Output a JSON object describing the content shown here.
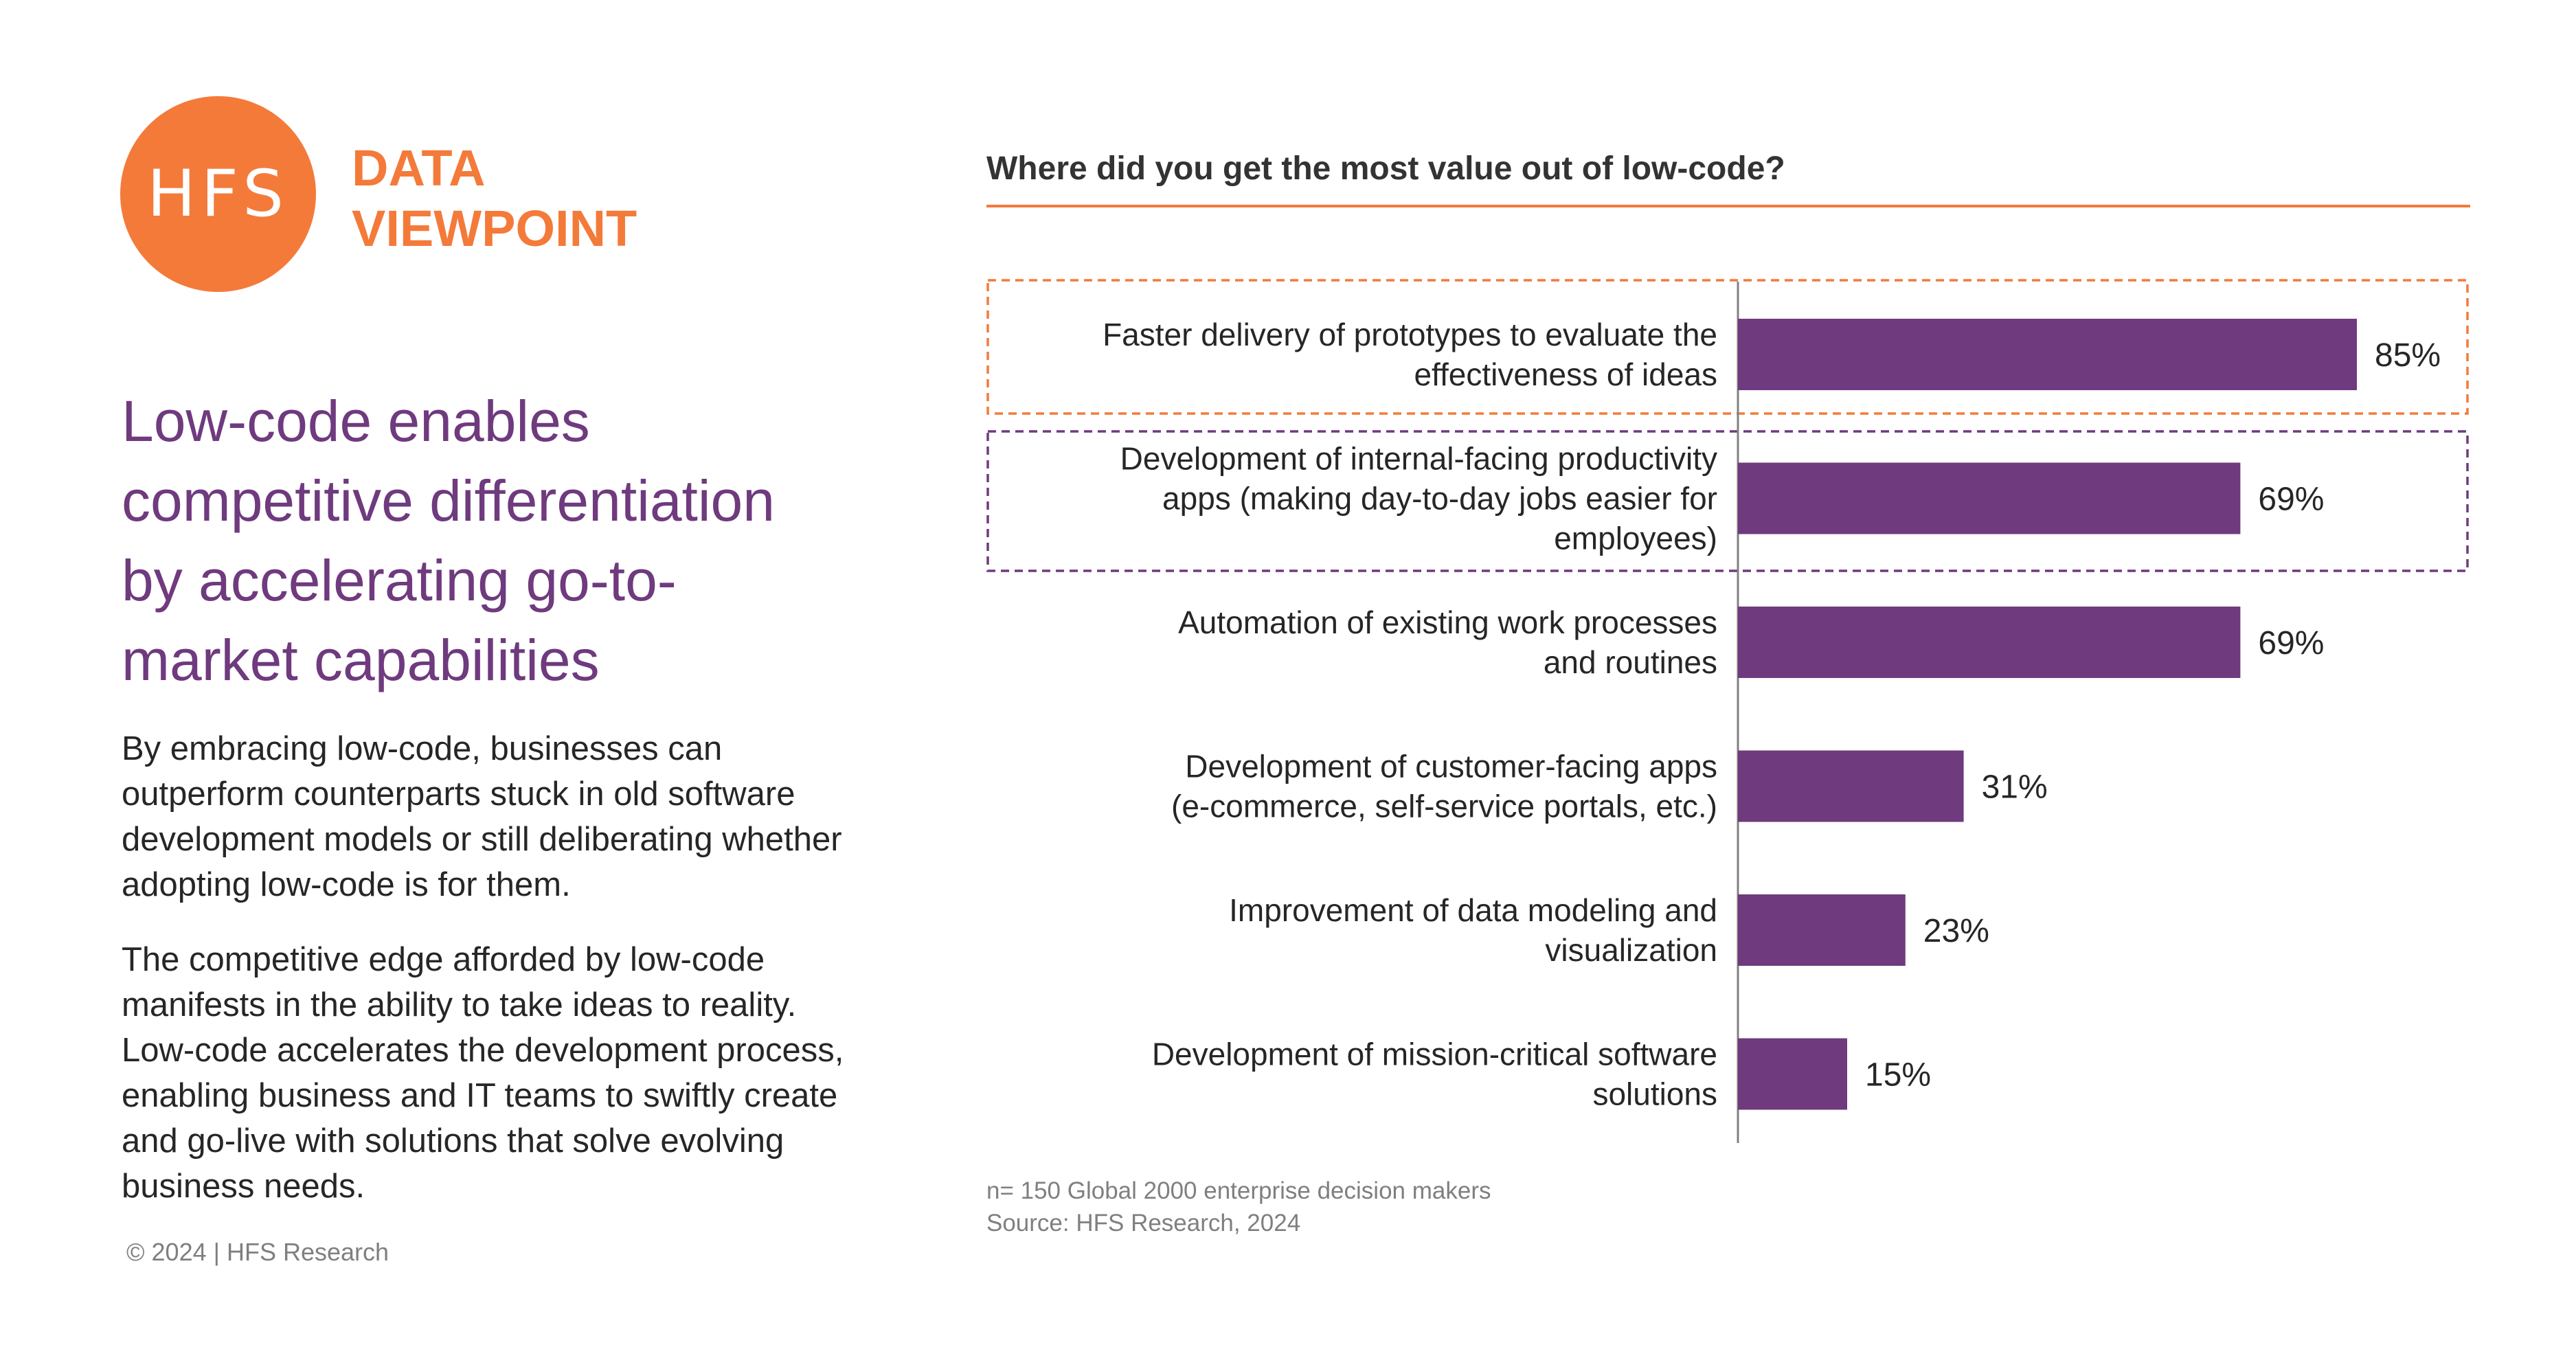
{
  "brand": {
    "logo_text": "HFS",
    "line1": "DATA",
    "line2": "VIEWPOINT",
    "accent_color": "#F47A3A"
  },
  "headline": "Low-code enables competitive differentiation by accelerating go-to-market capabilities",
  "headline_color": "#6F3A7E",
  "paragraphs": [
    "By embracing low-code, businesses can outperform counterparts stuck in old software development models or still deliberating whether adopting low-code is for them.",
    "The competitive edge afforded by low-code manifests in the ability to take ideas to reality. Low-code accelerates the development process, enabling business and IT teams to swiftly create and go-live with solutions that solve evolving business needs."
  ],
  "copyright": "© 2024 | HFS Research",
  "chart_data": {
    "type": "bar",
    "orientation": "horizontal",
    "title": "Where did you get the most value out of low-code?",
    "categories": [
      [
        "Faster delivery of prototypes to evaluate the",
        "effectiveness of ideas"
      ],
      [
        "Development of internal-facing productivity",
        "apps (making day-to-day jobs easier for",
        "employees)"
      ],
      [
        "Automation of existing work processes",
        "and routines"
      ],
      [
        "Development of customer-facing apps",
        "(e-commerce, self-service portals, etc.)"
      ],
      [
        "Improvement of data modeling and",
        "visualization"
      ],
      [
        "Development of mission-critical software",
        "solutions"
      ]
    ],
    "values": [
      85,
      69,
      69,
      31,
      23,
      15
    ],
    "value_labels": [
      "85%",
      "69%",
      "69%",
      "31%",
      "23%",
      "15%"
    ],
    "unit": "%",
    "xlim": [
      0,
      100
    ],
    "bar_color": "#6F3A7E",
    "highlights": [
      {
        "category_index": 0,
        "style": "dashed",
        "color": "#F47A3A"
      },
      {
        "category_index": 1,
        "style": "dashed",
        "color": "#6F3A7E"
      }
    ],
    "grid": false
  },
  "notes": [
    "n= 150 Global 2000 enterprise decision makers",
    "Source: HFS Research, 2024"
  ]
}
